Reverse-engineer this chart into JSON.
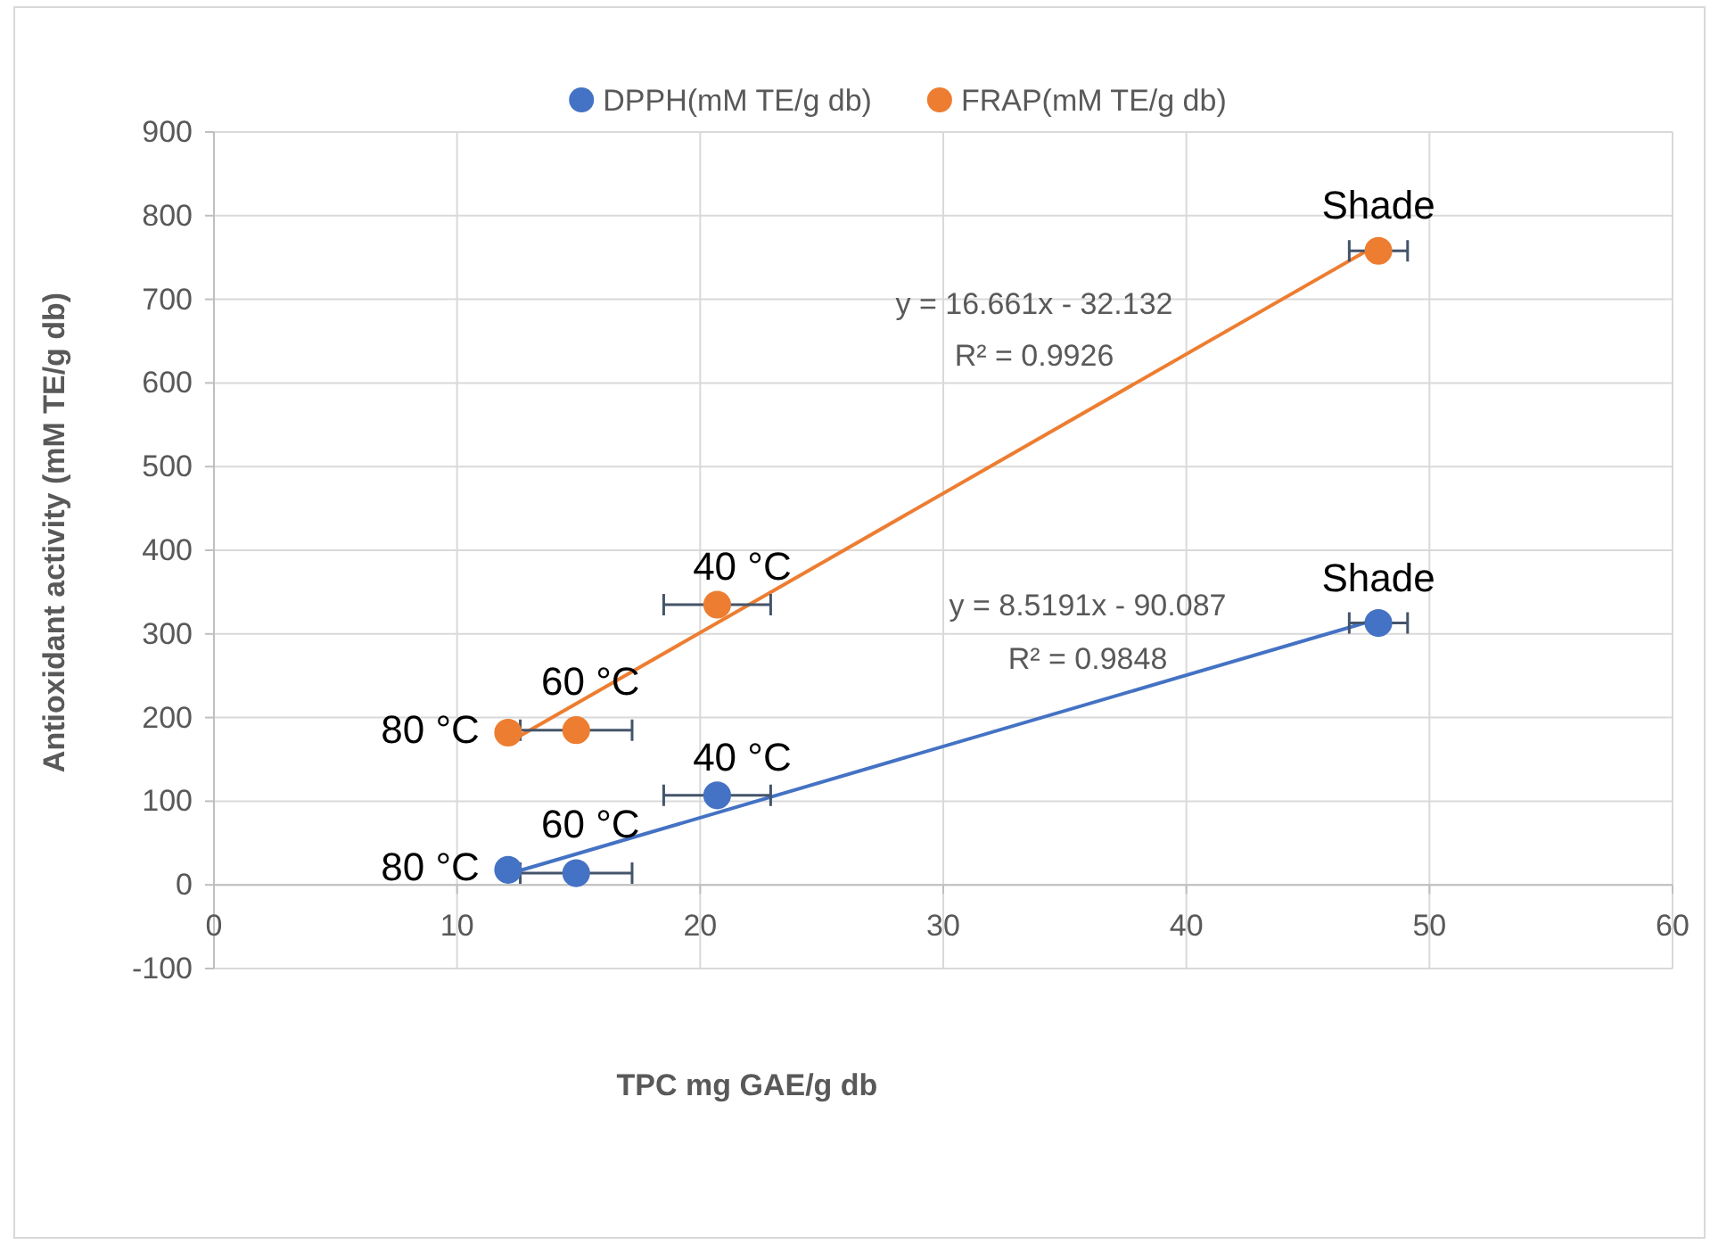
{
  "chart_data": {
    "type": "scatter",
    "xlabel": "TPC mg GAE/g db",
    "ylabel": "Antioxidant activity (mM TE/g db)",
    "xlim": [
      0,
      60
    ],
    "xticks": [
      0,
      10,
      20,
      30,
      40,
      50,
      60
    ],
    "ylim": [
      -100,
      900
    ],
    "yticks": [
      -100,
      0,
      100,
      200,
      300,
      400,
      500,
      600,
      700,
      800,
      900
    ],
    "grid": true,
    "legend": "top",
    "marker": "circle",
    "series": [
      {
        "name": "DPPH(mM TE/g db)",
        "color": "#4472c4",
        "x": [
          12.1,
          14.9,
          20.7,
          47.9
        ],
        "values": [
          18,
          14,
          107,
          313
        ],
        "xerrors": [
          null,
          2.3,
          2.2,
          1.2
        ]
      },
      {
        "name": "FRAP(mM TE/g db)",
        "color": "#ed7d31",
        "x": [
          12.1,
          14.9,
          20.7,
          47.9
        ],
        "values": [
          182,
          185,
          335,
          758
        ],
        "xerrors": [
          null,
          2.3,
          2.2,
          1.2
        ]
      },
      {
        "type": "line",
        "marker": "none",
        "color": "#4472c4",
        "x": [
          12.1,
          47.9
        ],
        "values": [
          13,
          318
        ]
      },
      {
        "type": "line",
        "marker": "none",
        "color": "#ed7d31",
        "x": [
          12.1,
          47.9
        ],
        "values": [
          170,
          766
        ]
      }
    ],
    "annotations": [
      {
        "text": "80 °C",
        "x": 12.1,
        "y": 18
      },
      {
        "text": "60 °C",
        "x": 14.9,
        "y": 14
      },
      {
        "text": "40 °C",
        "x": 20.7,
        "y": 107
      },
      {
        "text": "Shade",
        "x": 47.9,
        "y": 313
      },
      {
        "text": "80 °C",
        "x": 12.1,
        "y": 182
      },
      {
        "text": "60 °C",
        "x": 14.9,
        "y": 185
      },
      {
        "text": "40 °C",
        "x": 20.7,
        "y": 335
      },
      {
        "text": "Shade",
        "x": 47.9,
        "y": 758
      },
      "y = 8.5191x - 90.087",
      "R² = 0.9848",
      "y = 16.661x - 32.132",
      "R² = 0.9926"
    ]
  }
}
